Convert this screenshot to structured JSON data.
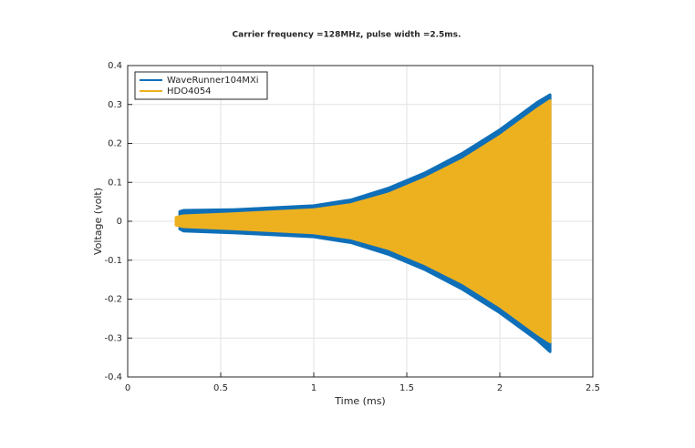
{
  "chart_data": {
    "type": "band",
    "title": "Carrier frequency =128MHz, pulse width =2.5ms.",
    "x_label": "Time (ms)",
    "y_label": "Voltage (volt)",
    "xlim": [
      0,
      2.5
    ],
    "ylim": [
      -0.4,
      0.4
    ],
    "xticks": [
      0,
      0.5,
      1,
      1.5,
      2,
      2.5
    ],
    "yticks": [
      -0.4,
      -0.3,
      -0.2,
      -0.1,
      0,
      0.1,
      0.2,
      0.3,
      0.4
    ],
    "grid": true,
    "legend": "upper-left",
    "series": [
      {
        "name": "WaveRunner104MXi",
        "color": "#0f6fb8",
        "x": [
          0.28,
          0.3,
          0.57,
          1.0,
          1.2,
          1.4,
          1.6,
          1.8,
          2.0,
          2.2,
          2.27
        ],
        "values": [
          0.025,
          0.028,
          0.03,
          0.04,
          0.055,
          0.085,
          0.125,
          0.175,
          0.235,
          0.305,
          0.325
        ],
        "lower": [
          -0.02,
          -0.025,
          -0.03,
          -0.04,
          -0.055,
          -0.085,
          -0.125,
          -0.175,
          -0.235,
          -0.305,
          -0.335
        ]
      },
      {
        "name": "HDO4054",
        "color": "#edb120",
        "x": [
          0.26,
          0.3,
          0.6,
          1.0,
          1.2,
          1.4,
          1.6,
          1.8,
          2.0,
          2.2,
          2.27
        ],
        "values": [
          0.01,
          0.014,
          0.02,
          0.03,
          0.043,
          0.07,
          0.11,
          0.158,
          0.218,
          0.288,
          0.31
        ],
        "lower": [
          -0.01,
          -0.014,
          -0.02,
          -0.03,
          -0.043,
          -0.07,
          -0.11,
          -0.158,
          -0.218,
          -0.288,
          -0.31
        ]
      }
    ]
  }
}
